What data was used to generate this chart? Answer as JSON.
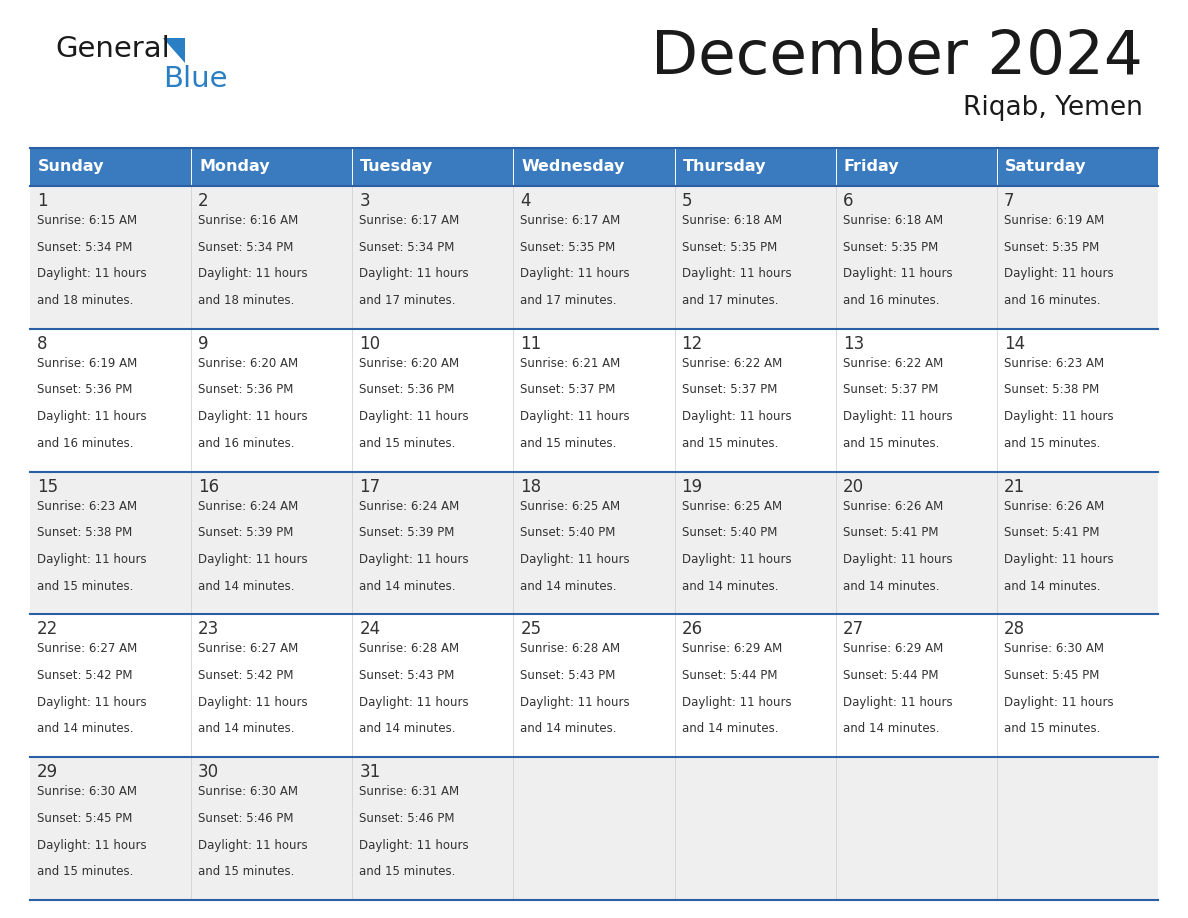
{
  "title": "December 2024",
  "subtitle": "Riqab, Yemen",
  "header_bg_color": "#3a7abf",
  "header_text_color": "#ffffff",
  "cell_bg_color_odd": "#efefef",
  "cell_bg_color_even": "#ffffff",
  "border_color": "#2a5fa5",
  "text_color": "#333333",
  "days_of_week": [
    "Sunday",
    "Monday",
    "Tuesday",
    "Wednesday",
    "Thursday",
    "Friday",
    "Saturday"
  ],
  "weeks": [
    [
      {
        "day": 1,
        "sunrise": "6:15 AM",
        "sunset": "5:34 PM",
        "daylight_hours": 11,
        "daylight_minutes": 18
      },
      {
        "day": 2,
        "sunrise": "6:16 AM",
        "sunset": "5:34 PM",
        "daylight_hours": 11,
        "daylight_minutes": 18
      },
      {
        "day": 3,
        "sunrise": "6:17 AM",
        "sunset": "5:34 PM",
        "daylight_hours": 11,
        "daylight_minutes": 17
      },
      {
        "day": 4,
        "sunrise": "6:17 AM",
        "sunset": "5:35 PM",
        "daylight_hours": 11,
        "daylight_minutes": 17
      },
      {
        "day": 5,
        "sunrise": "6:18 AM",
        "sunset": "5:35 PM",
        "daylight_hours": 11,
        "daylight_minutes": 17
      },
      {
        "day": 6,
        "sunrise": "6:18 AM",
        "sunset": "5:35 PM",
        "daylight_hours": 11,
        "daylight_minutes": 16
      },
      {
        "day": 7,
        "sunrise": "6:19 AM",
        "sunset": "5:35 PM",
        "daylight_hours": 11,
        "daylight_minutes": 16
      }
    ],
    [
      {
        "day": 8,
        "sunrise": "6:19 AM",
        "sunset": "5:36 PM",
        "daylight_hours": 11,
        "daylight_minutes": 16
      },
      {
        "day": 9,
        "sunrise": "6:20 AM",
        "sunset": "5:36 PM",
        "daylight_hours": 11,
        "daylight_minutes": 16
      },
      {
        "day": 10,
        "sunrise": "6:20 AM",
        "sunset": "5:36 PM",
        "daylight_hours": 11,
        "daylight_minutes": 15
      },
      {
        "day": 11,
        "sunrise": "6:21 AM",
        "sunset": "5:37 PM",
        "daylight_hours": 11,
        "daylight_minutes": 15
      },
      {
        "day": 12,
        "sunrise": "6:22 AM",
        "sunset": "5:37 PM",
        "daylight_hours": 11,
        "daylight_minutes": 15
      },
      {
        "day": 13,
        "sunrise": "6:22 AM",
        "sunset": "5:37 PM",
        "daylight_hours": 11,
        "daylight_minutes": 15
      },
      {
        "day": 14,
        "sunrise": "6:23 AM",
        "sunset": "5:38 PM",
        "daylight_hours": 11,
        "daylight_minutes": 15
      }
    ],
    [
      {
        "day": 15,
        "sunrise": "6:23 AM",
        "sunset": "5:38 PM",
        "daylight_hours": 11,
        "daylight_minutes": 15
      },
      {
        "day": 16,
        "sunrise": "6:24 AM",
        "sunset": "5:39 PM",
        "daylight_hours": 11,
        "daylight_minutes": 14
      },
      {
        "day": 17,
        "sunrise": "6:24 AM",
        "sunset": "5:39 PM",
        "daylight_hours": 11,
        "daylight_minutes": 14
      },
      {
        "day": 18,
        "sunrise": "6:25 AM",
        "sunset": "5:40 PM",
        "daylight_hours": 11,
        "daylight_minutes": 14
      },
      {
        "day": 19,
        "sunrise": "6:25 AM",
        "sunset": "5:40 PM",
        "daylight_hours": 11,
        "daylight_minutes": 14
      },
      {
        "day": 20,
        "sunrise": "6:26 AM",
        "sunset": "5:41 PM",
        "daylight_hours": 11,
        "daylight_minutes": 14
      },
      {
        "day": 21,
        "sunrise": "6:26 AM",
        "sunset": "5:41 PM",
        "daylight_hours": 11,
        "daylight_minutes": 14
      }
    ],
    [
      {
        "day": 22,
        "sunrise": "6:27 AM",
        "sunset": "5:42 PM",
        "daylight_hours": 11,
        "daylight_minutes": 14
      },
      {
        "day": 23,
        "sunrise": "6:27 AM",
        "sunset": "5:42 PM",
        "daylight_hours": 11,
        "daylight_minutes": 14
      },
      {
        "day": 24,
        "sunrise": "6:28 AM",
        "sunset": "5:43 PM",
        "daylight_hours": 11,
        "daylight_minutes": 14
      },
      {
        "day": 25,
        "sunrise": "6:28 AM",
        "sunset": "5:43 PM",
        "daylight_hours": 11,
        "daylight_minutes": 14
      },
      {
        "day": 26,
        "sunrise": "6:29 AM",
        "sunset": "5:44 PM",
        "daylight_hours": 11,
        "daylight_minutes": 14
      },
      {
        "day": 27,
        "sunrise": "6:29 AM",
        "sunset": "5:44 PM",
        "daylight_hours": 11,
        "daylight_minutes": 14
      },
      {
        "day": 28,
        "sunrise": "6:30 AM",
        "sunset": "5:45 PM",
        "daylight_hours": 11,
        "daylight_minutes": 15
      }
    ],
    [
      {
        "day": 29,
        "sunrise": "6:30 AM",
        "sunset": "5:45 PM",
        "daylight_hours": 11,
        "daylight_minutes": 15
      },
      {
        "day": 30,
        "sunrise": "6:30 AM",
        "sunset": "5:46 PM",
        "daylight_hours": 11,
        "daylight_minutes": 15
      },
      {
        "day": 31,
        "sunrise": "6:31 AM",
        "sunset": "5:46 PM",
        "daylight_hours": 11,
        "daylight_minutes": 15
      },
      null,
      null,
      null,
      null
    ]
  ],
  "logo_color_general": "#1a1a1a",
  "logo_color_blue": "#2a7fc4",
  "logo_triangle_color": "#2a7fc4"
}
